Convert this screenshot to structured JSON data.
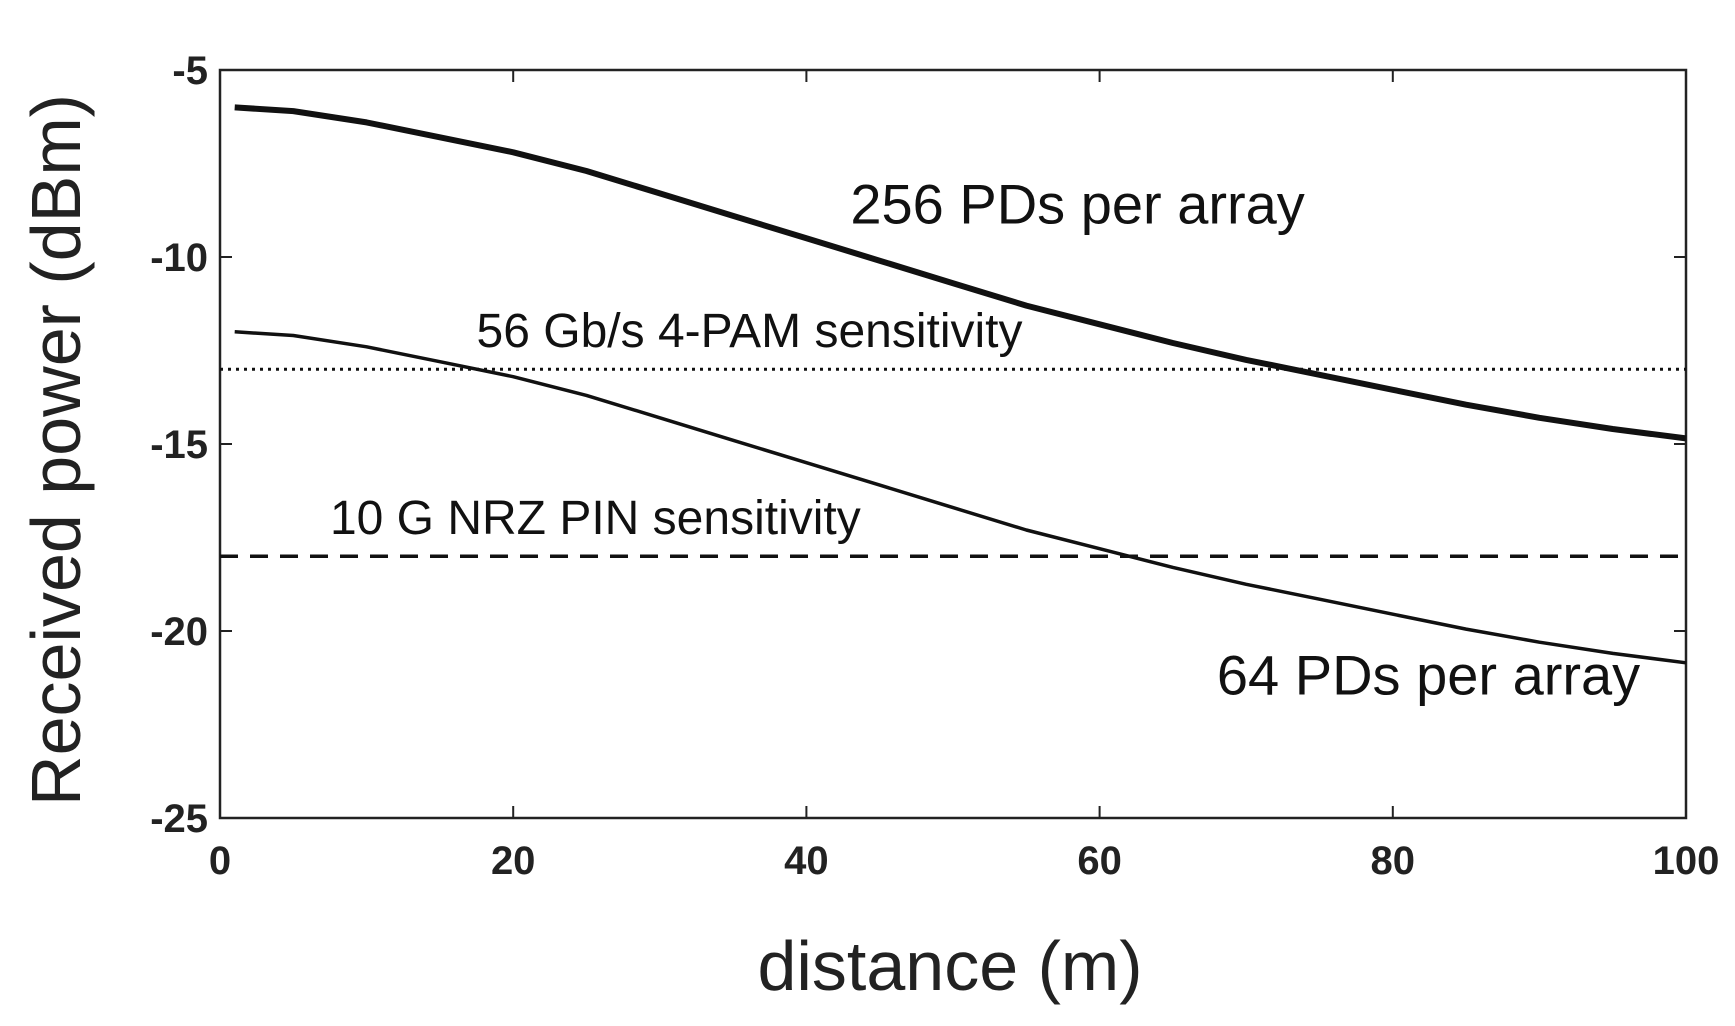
{
  "chart_data": {
    "type": "line",
    "title": "",
    "xlabel": "distance (m)",
    "ylabel": "Received power (dBm)",
    "xlim": [
      0,
      100
    ],
    "ylim": [
      -25,
      -5
    ],
    "xticks": [
      0,
      20,
      40,
      60,
      80,
      100
    ],
    "yticks": [
      -5,
      -10,
      -15,
      -20,
      -25
    ],
    "grid": false,
    "series": [
      {
        "name": "256 PDs per array",
        "style": "solid-thick",
        "color": "#111111",
        "x": [
          1,
          5,
          10,
          15,
          20,
          25,
          30,
          35,
          40,
          45,
          50,
          55,
          60,
          65,
          70,
          75,
          80,
          85,
          90,
          95,
          100
        ],
        "y": [
          -6.0,
          -6.1,
          -6.4,
          -6.8,
          -7.2,
          -7.7,
          -8.3,
          -8.9,
          -9.5,
          -10.1,
          -10.7,
          -11.3,
          -11.8,
          -12.3,
          -12.75,
          -13.15,
          -13.55,
          -13.95,
          -14.3,
          -14.6,
          -14.85
        ]
      },
      {
        "name": "64 PDs per array",
        "style": "solid",
        "color": "#111111",
        "x": [
          1,
          5,
          10,
          15,
          20,
          25,
          30,
          35,
          40,
          45,
          50,
          55,
          60,
          65,
          70,
          75,
          80,
          85,
          90,
          95,
          100
        ],
        "y": [
          -12.0,
          -12.1,
          -12.4,
          -12.8,
          -13.2,
          -13.7,
          -14.3,
          -14.9,
          -15.5,
          -16.1,
          -16.7,
          -17.3,
          -17.8,
          -18.3,
          -18.75,
          -19.15,
          -19.55,
          -19.95,
          -20.3,
          -20.6,
          -20.85
        ]
      },
      {
        "name": "56 Gb/s 4-PAM sensitivity",
        "style": "dotted",
        "color": "#111111",
        "x": [
          0,
          100
        ],
        "y": [
          -13,
          -13
        ]
      },
      {
        "name": "10 G NRZ PIN sensitivity",
        "style": "dashed",
        "color": "#111111",
        "x": [
          0,
          100
        ],
        "y": [
          -18,
          -18
        ]
      }
    ],
    "annotations": [
      {
        "text": "256 PDs per array",
        "x": 43,
        "y": -9.1,
        "size": "large"
      },
      {
        "text": "56 Gb/s 4-PAM sensitivity",
        "x": 17.5,
        "y": -12.4,
        "size": "medium"
      },
      {
        "text": "10 G NRZ PIN sensitivity",
        "x": 7.5,
        "y": -17.4,
        "size": "medium"
      },
      {
        "text": "64 PDs per array",
        "x": 68,
        "y": -21.7,
        "size": "large"
      }
    ]
  }
}
